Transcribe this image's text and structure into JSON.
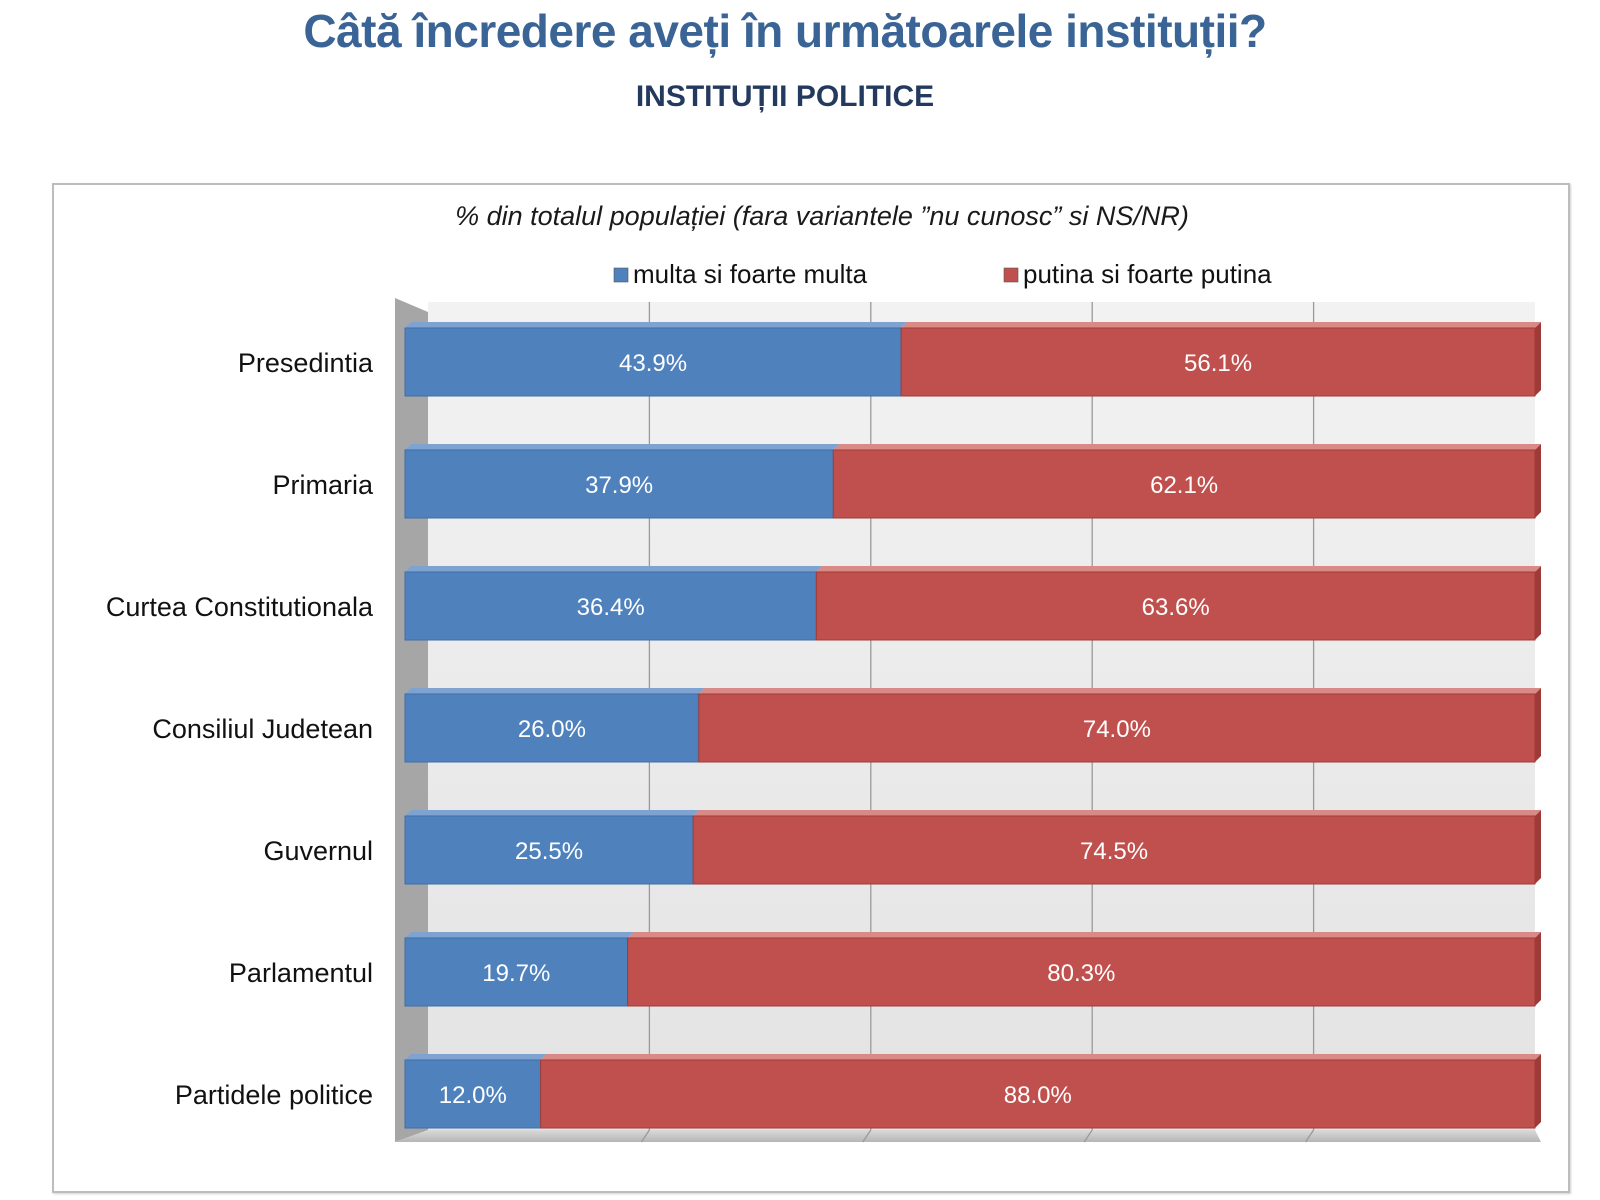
{
  "header": {
    "title": "Câtă încredere aveți în următoarele instituții?",
    "subtitle": "INSTITUȚII POLITICE"
  },
  "chart_data": {
    "type": "bar",
    "orientation": "horizontal",
    "stacked": true,
    "percent_stacked": true,
    "title": "% din totalul populației (fara variantele ”nu cunosc” si NS/NR)",
    "categories": [
      "Presedintia",
      "Primaria",
      "Curtea Constitutionala",
      "Consiliul Judetean",
      "Guvernul",
      "Parlamentul",
      "Partidele politice"
    ],
    "series": [
      {
        "name": "multa si foarte multa",
        "color": "#4f81bd",
        "values": [
          43.9,
          37.9,
          36.4,
          26.0,
          25.5,
          19.7,
          12.0
        ],
        "labels": [
          "43.9%",
          "37.9%",
          "36.4%",
          "26.0%",
          "25.5%",
          "19.7%",
          "12.0%"
        ]
      },
      {
        "name": "putina si foarte putina",
        "color": "#c0504d",
        "values": [
          56.1,
          62.1,
          63.6,
          74.0,
          74.5,
          80.3,
          88.0
        ],
        "labels": [
          "56.1%",
          "62.1%",
          "63.6%",
          "74.0%",
          "74.5%",
          "80.3%",
          "88.0%"
        ]
      }
    ],
    "xlim": [
      0,
      100
    ],
    "grid": true,
    "legend_position": "top",
    "style": "3d"
  }
}
